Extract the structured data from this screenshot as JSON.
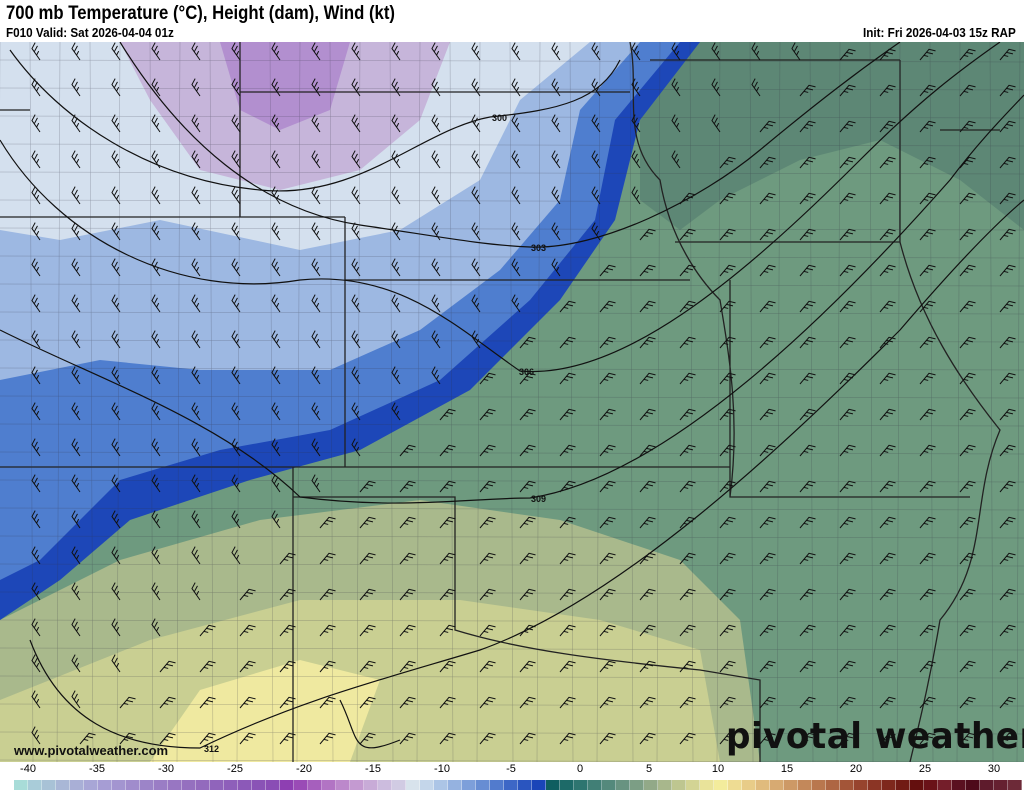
{
  "header": {
    "title": "700 mb Temperature (°C), Height (dam), Wind (kt)",
    "valid": "F010 Valid: Sat 2026-04-04 01z",
    "init": "Init: Fri 2026-04-03 15z RAP"
  },
  "map": {
    "contour_labels": [
      "300",
      "303",
      "306",
      "309",
      "312"
    ],
    "watermark_url": "www.pivotalweather.com",
    "logo": "pivotal weather"
  },
  "colorbar": {
    "ticks": [
      "-40",
      "-35",
      "-30",
      "-25",
      "-20",
      "-15",
      "-10",
      "-5",
      "0",
      "5",
      "10",
      "15",
      "20",
      "25",
      "30"
    ],
    "colors": [
      "#a8dcd8",
      "#a9ccd9",
      "#a8c2d6",
      "#a9b7d6",
      "#a9afd6",
      "#a8a6d6",
      "#a69dd4",
      "#a395d0",
      "#a08ccc",
      "#9c84c8",
      "#9a7dc5",
      "#9876c2",
      "#9570bf",
      "#936abd",
      "#9064bb",
      "#8e5fba",
      "#8c59b8",
      "#8a53b6",
      "#8a4db5",
      "#8e3fb2",
      "#9a4bb6",
      "#a65fbd",
      "#b274c4",
      "#bc88cb",
      "#c49ad1",
      "#c8abd7",
      "#ccbcde",
      "#d1cbe3",
      "#d8e3ec",
      "#c4d6ea",
      "#acc5e6",
      "#95b2e0",
      "#7d9fda",
      "#678dd3",
      "#527bcd",
      "#3d67c6",
      "#2a55bf",
      "#1a45b8",
      "#0f5e60",
      "#1d6a68",
      "#2e7570",
      "#417f76",
      "#54897c",
      "#689381",
      "#7c9e85",
      "#92a988",
      "#a8b78c",
      "#bec690",
      "#d3d494",
      "#e9e39a",
      "#f3ec9c",
      "#eedc93",
      "#e8cc88",
      "#e0bb7d",
      "#d7aa72",
      "#cd9966",
      "#c3885a",
      "#b9774e",
      "#ae6643",
      "#a35538",
      "#97442e",
      "#8b3525",
      "#7e281c",
      "#711b14",
      "#640f0e",
      "#6a1218",
      "#741e2a",
      "#5a1020",
      "#4e0a1a",
      "#5e1b2c",
      "#652030",
      "#6d2a38"
    ]
  }
}
